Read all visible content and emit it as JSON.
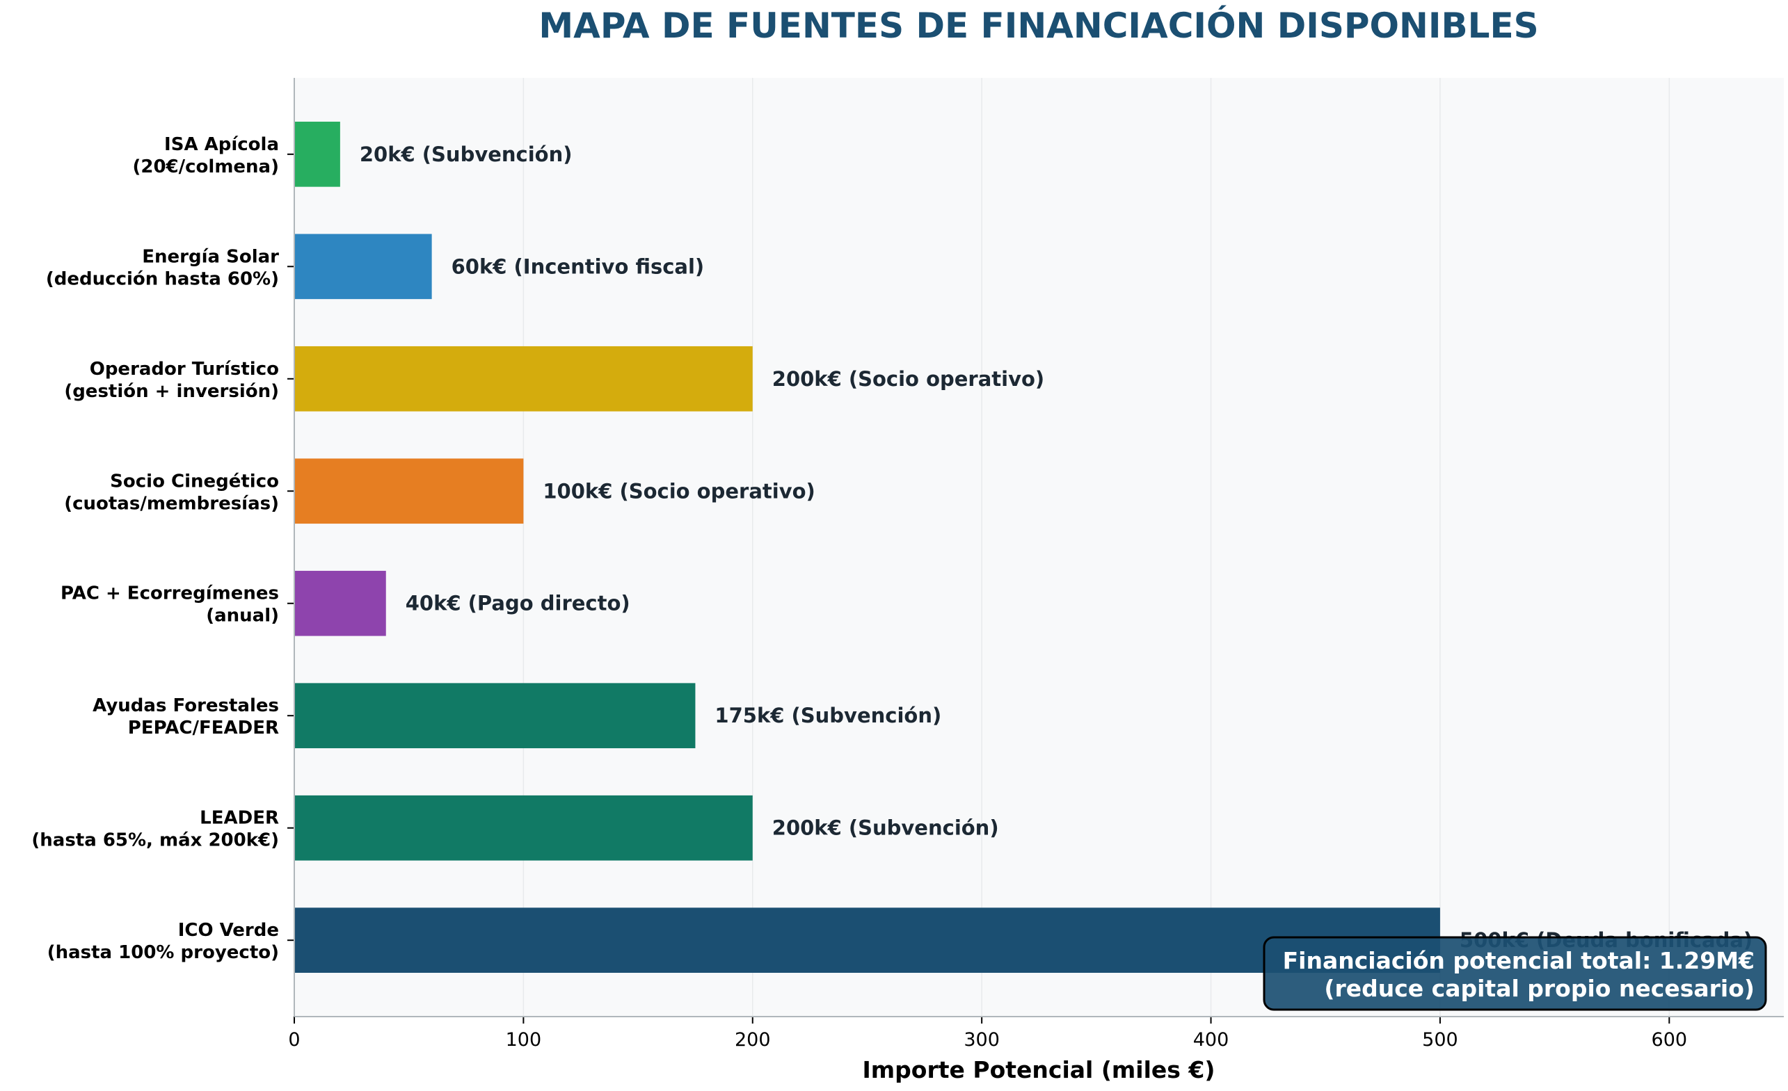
{
  "chart_data": {
    "type": "bar",
    "orientation": "horizontal",
    "title": "MAPA DE FUENTES DE FINANCIACIÓN DISPONIBLES",
    "xlabel": "Importe Potencial (miles €)",
    "ylabel": "",
    "xlim": [
      0,
      650
    ],
    "xticks": [
      0,
      100,
      200,
      300,
      400,
      500,
      600
    ],
    "grid": "x",
    "categories": [
      [
        "ICO Verde",
        "(hasta 100% proyecto)"
      ],
      [
        "LEADER",
        "(hasta 65%, máx 200k€)"
      ],
      [
        "Ayudas Forestales",
        "PEPAC/FEADER"
      ],
      [
        "PAC + Ecorregímenes",
        "(anual)"
      ],
      [
        "Socio Cinegético",
        "(cuotas/membresías)"
      ],
      [
        "Operador Turístico",
        "(gestión + inversión)"
      ],
      [
        "Energía Solar",
        "(deducción hasta 60%)"
      ],
      [
        "ISA Apícola",
        "(20€/colmena)"
      ]
    ],
    "values": [
      500,
      200,
      175,
      40,
      100,
      200,
      60,
      20
    ],
    "data_labels": [
      "500k€ (Deuda bonificada)",
      "200k€ (Subvención)",
      "175k€ (Subvención)",
      "40k€ (Pago directo)",
      "100k€ (Socio operativo)",
      "200k€ (Socio operativo)",
      "60k€ (Incentivo fiscal)",
      "20k€ (Subvención)"
    ],
    "colors": [
      "#1b4f72",
      "#117a65",
      "#117a65",
      "#8e44ad",
      "#e67e22",
      "#d4ac0d",
      "#2e86c1",
      "#27ae60"
    ],
    "title_color": "#1b4f72",
    "annotation": {
      "lines": [
        "Financiación potencial total: 1.29M€",
        "(reduce capital propio necesario)"
      ],
      "placement": "bottom-right",
      "background": "#1b4f72"
    }
  }
}
